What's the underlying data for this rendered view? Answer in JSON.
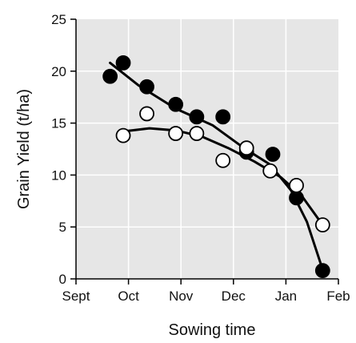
{
  "chart_data": {
    "type": "scatter",
    "xlabel": "Sowing time",
    "ylabel": "Grain Yield (t/ha)",
    "x_ticks": [
      "Sept",
      "Oct",
      "Nov",
      "Dec",
      "Jan",
      "Feb"
    ],
    "y_ticks": [
      0,
      5,
      10,
      15,
      20,
      25
    ],
    "xlim": [
      0,
      5
    ],
    "ylim": [
      0,
      25
    ],
    "grid": true,
    "x_unit": "months from start of Sept",
    "series": [
      {
        "marker": "filled-circle",
        "color": "#000000",
        "points": [
          {
            "x": 0.65,
            "y": 19.5
          },
          {
            "x": 0.9,
            "y": 20.8
          },
          {
            "x": 1.35,
            "y": 18.5
          },
          {
            "x": 1.9,
            "y": 16.8
          },
          {
            "x": 2.3,
            "y": 15.6
          },
          {
            "x": 2.8,
            "y": 15.6
          },
          {
            "x": 3.25,
            "y": 12.2
          },
          {
            "x": 3.75,
            "y": 12.0
          },
          {
            "x": 4.2,
            "y": 7.8
          },
          {
            "x": 4.7,
            "y": 0.8
          }
        ],
        "trend": [
          {
            "x": 0.65,
            "y": 20.8
          },
          {
            "x": 1.2,
            "y": 18.6
          },
          {
            "x": 1.9,
            "y": 16.4
          },
          {
            "x": 2.6,
            "y": 14.8
          },
          {
            "x": 3.2,
            "y": 12.6
          },
          {
            "x": 3.7,
            "y": 11.0
          },
          {
            "x": 4.1,
            "y": 8.5
          },
          {
            "x": 4.4,
            "y": 5.5
          },
          {
            "x": 4.7,
            "y": 0.9
          }
        ]
      },
      {
        "marker": "open-circle",
        "color": "#000000",
        "points": [
          {
            "x": 0.9,
            "y": 13.8
          },
          {
            "x": 1.35,
            "y": 15.9
          },
          {
            "x": 1.9,
            "y": 14.0
          },
          {
            "x": 2.3,
            "y": 14.0
          },
          {
            "x": 2.8,
            "y": 11.4
          },
          {
            "x": 3.25,
            "y": 12.6
          },
          {
            "x": 3.7,
            "y": 10.4
          },
          {
            "x": 4.2,
            "y": 9.0
          },
          {
            "x": 4.7,
            "y": 5.2
          }
        ],
        "trend": [
          {
            "x": 0.9,
            "y": 14.2
          },
          {
            "x": 1.4,
            "y": 14.5
          },
          {
            "x": 1.9,
            "y": 14.3
          },
          {
            "x": 2.4,
            "y": 13.7
          },
          {
            "x": 2.9,
            "y": 12.6
          },
          {
            "x": 3.4,
            "y": 11.3
          },
          {
            "x": 3.9,
            "y": 9.8
          },
          {
            "x": 4.3,
            "y": 8.0
          },
          {
            "x": 4.7,
            "y": 5.2
          }
        ]
      }
    ]
  }
}
